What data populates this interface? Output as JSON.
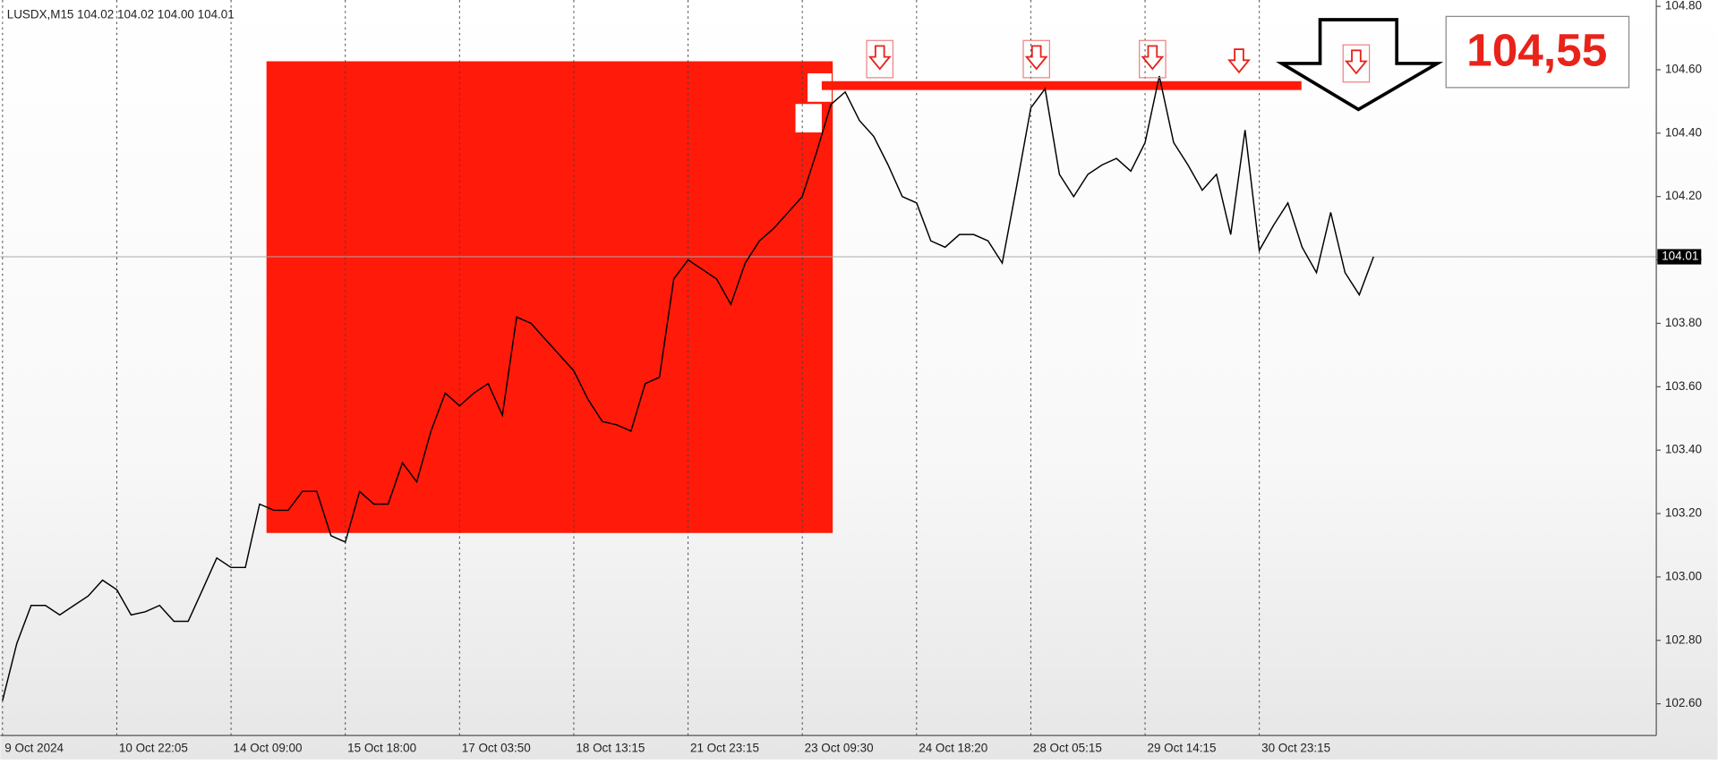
{
  "chart_data": {
    "type": "line",
    "title": "LUSDX,M15  104.02 104.02 104.00 104.01",
    "categories": [
      "9 Oct 2024",
      null,
      null,
      null,
      null,
      null,
      null,
      null,
      "10 Oct 22:05",
      null,
      null,
      null,
      null,
      null,
      null,
      null,
      "14 Oct 09:00",
      null,
      null,
      null,
      null,
      null,
      null,
      null,
      "15 Oct 18:00",
      null,
      null,
      null,
      null,
      null,
      null,
      null,
      "17 Oct 03:50",
      null,
      null,
      null,
      null,
      null,
      null,
      null,
      "18 Oct 13:15",
      null,
      null,
      null,
      null,
      null,
      null,
      null,
      "21 Oct 23:15",
      null,
      null,
      null,
      null,
      null,
      null,
      null,
      "23 Oct 09:30",
      null,
      null,
      null,
      null,
      null,
      null,
      null,
      "24 Oct 18:20",
      null,
      null,
      null,
      null,
      null,
      null,
      null,
      "28 Oct 05:15",
      null,
      null,
      null,
      null,
      null,
      null,
      null,
      "29 Oct 14:15",
      null,
      null,
      null,
      null,
      null,
      null,
      null,
      "30 Oct 23:15",
      null,
      null,
      null,
      null,
      null,
      null,
      null,
      null
    ],
    "values": [
      102.61,
      102.79,
      102.91,
      102.91,
      102.88,
      102.91,
      102.94,
      102.99,
      102.96,
      102.88,
      102.89,
      102.91,
      102.86,
      102.86,
      102.96,
      103.06,
      103.03,
      103.03,
      103.23,
      103.21,
      103.21,
      103.27,
      103.27,
      103.13,
      103.11,
      103.27,
      103.23,
      103.23,
      103.36,
      103.3,
      103.46,
      103.58,
      103.54,
      103.58,
      103.61,
      103.51,
      103.82,
      103.8,
      103.75,
      103.7,
      103.65,
      103.56,
      103.49,
      103.48,
      103.46,
      103.61,
      103.63,
      103.94,
      104.0,
      103.97,
      103.94,
      103.86,
      103.99,
      104.06,
      104.1,
      104.15,
      104.2,
      104.34,
      104.49,
      104.53,
      104.44,
      104.39,
      104.3,
      104.2,
      104.18,
      104.06,
      104.04,
      104.08,
      104.08,
      104.06,
      103.99,
      104.23,
      104.48,
      104.54,
      104.27,
      104.2,
      104.27,
      104.3,
      104.32,
      104.28,
      104.37,
      104.58,
      104.37,
      104.3,
      104.22,
      104.27,
      104.08,
      104.41,
      104.03,
      104.11,
      104.18,
      104.04,
      103.96,
      104.15,
      103.96,
      103.89,
      104.01
    ],
    "color": "#000000",
    "ylim": [
      102.5,
      104.82
    ],
    "yticks": [
      {
        "value": 102.6,
        "label": "102.60"
      },
      {
        "value": 102.8,
        "label": "102.80"
      },
      {
        "value": 103.0,
        "label": "103.00"
      },
      {
        "value": 103.2,
        "label": "103.20"
      },
      {
        "value": 103.4,
        "label": "103.40"
      },
      {
        "value": 103.6,
        "label": "103.60"
      },
      {
        "value": 103.8,
        "label": "103.80"
      },
      {
        "value": 104.0,
        "label": "104.00"
      },
      {
        "value": 104.2,
        "label": "104.20"
      },
      {
        "value": 104.4,
        "label": "104.40"
      },
      {
        "value": 104.6,
        "label": "104.60"
      },
      {
        "value": 104.8,
        "label": "104.80"
      }
    ],
    "level": {
      "value": 104.55,
      "label": "104,55"
    },
    "last_price": 104.01
  }
}
